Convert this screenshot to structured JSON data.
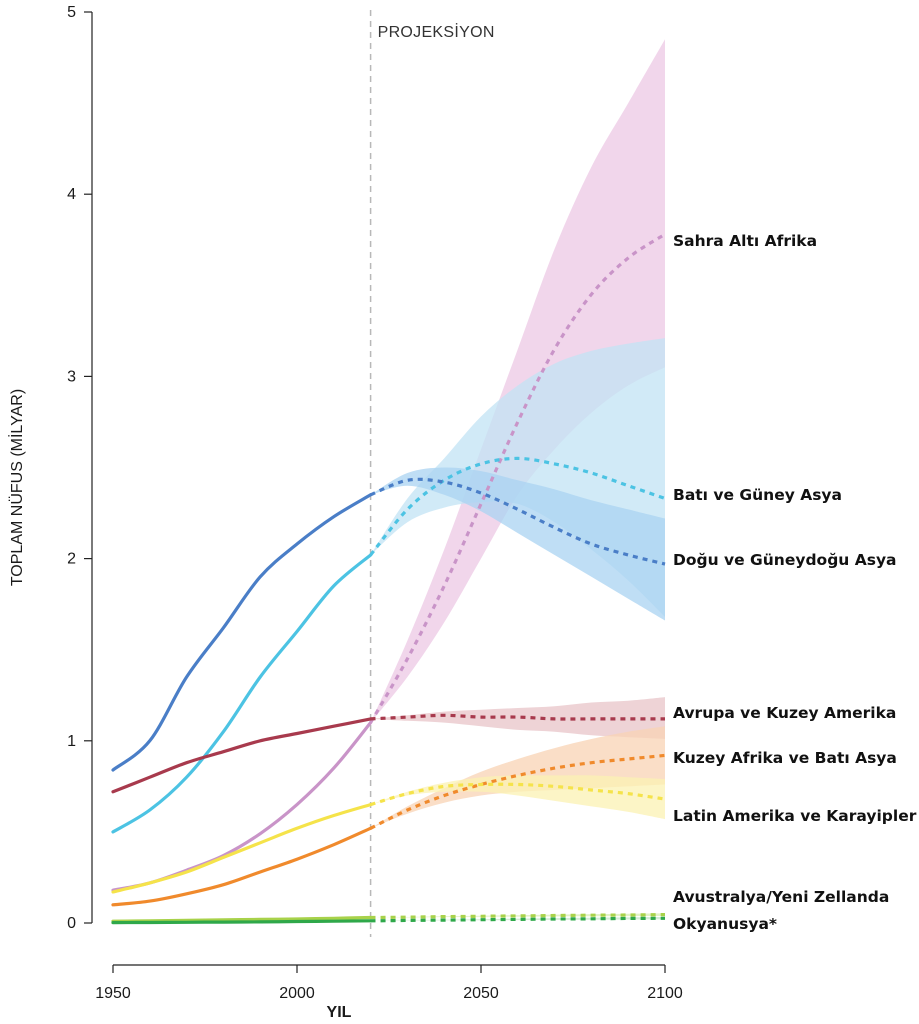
{
  "chart_data": {
    "type": "line",
    "title": "",
    "xlabel": "YIL",
    "ylabel": "TOPLAM NÜFUS (MİLYAR)",
    "xlim": [
      1950,
      2100
    ],
    "ylim": [
      0,
      5
    ],
    "xticks": [
      "1950",
      "2000",
      "2050",
      "2100"
    ],
    "yticks": [
      "0",
      "1",
      "2",
      "3",
      "4",
      "5"
    ],
    "projection_start": 2020,
    "projection_label": "PROJEKSİYON",
    "grid": false,
    "legend": "direct labels at right end of lines",
    "series": [
      {
        "name": "Sahra Altı Afrika",
        "color": "#c994c8",
        "band_color": "#ecc8e4",
        "x": [
          1950,
          1960,
          1970,
          1980,
          1990,
          2000,
          2010,
          2020,
          2030,
          2040,
          2050,
          2060,
          2070,
          2080,
          2090,
          2100
        ],
        "y": [
          0.18,
          0.22,
          0.29,
          0.37,
          0.49,
          0.65,
          0.85,
          1.1,
          1.45,
          1.85,
          2.3,
          2.75,
          3.15,
          3.45,
          3.65,
          3.78
        ],
        "lower": [
          null,
          null,
          null,
          null,
          null,
          null,
          null,
          1.1,
          1.35,
          1.65,
          2.0,
          2.35,
          2.6,
          2.8,
          2.95,
          3.05
        ],
        "upper": [
          null,
          null,
          null,
          null,
          null,
          null,
          null,
          1.1,
          1.55,
          2.05,
          2.6,
          3.15,
          3.7,
          4.15,
          4.5,
          4.85
        ]
      },
      {
        "name": "Batı ve Güney Asya",
        "color": "#4cc3e3",
        "band_color": "#c2e3f4",
        "x": [
          1950,
          1960,
          1970,
          1980,
          1990,
          2000,
          2010,
          2020,
          2030,
          2040,
          2050,
          2060,
          2070,
          2080,
          2090,
          2100
        ],
        "y": [
          0.5,
          0.62,
          0.8,
          1.05,
          1.35,
          1.6,
          1.85,
          2.02,
          2.27,
          2.43,
          2.52,
          2.55,
          2.52,
          2.47,
          2.4,
          2.33
        ],
        "lower": [
          null,
          null,
          null,
          null,
          null,
          null,
          null,
          2.02,
          2.2,
          2.28,
          2.31,
          2.3,
          2.2,
          2.05,
          1.88,
          1.68
        ],
        "upper": [
          null,
          null,
          null,
          null,
          null,
          null,
          null,
          2.02,
          2.33,
          2.55,
          2.78,
          2.95,
          3.07,
          3.14,
          3.18,
          3.21
        ]
      },
      {
        "name": "Doğu ve Güneydoğu Asya",
        "color": "#4a7ec7",
        "band_color": "#a9d3f1",
        "x": [
          1950,
          1960,
          1970,
          1980,
          1990,
          2000,
          2010,
          2020,
          2030,
          2040,
          2050,
          2060,
          2070,
          2080,
          2090,
          2100
        ],
        "y": [
          0.84,
          1.0,
          1.35,
          1.62,
          1.9,
          2.08,
          2.23,
          2.35,
          2.43,
          2.42,
          2.36,
          2.27,
          2.17,
          2.08,
          2.02,
          1.97
        ],
        "lower": [
          null,
          null,
          null,
          null,
          null,
          null,
          null,
          2.35,
          2.4,
          2.35,
          2.26,
          2.14,
          2.02,
          1.9,
          1.78,
          1.66
        ],
        "upper": [
          null,
          null,
          null,
          null,
          null,
          null,
          null,
          2.35,
          2.47,
          2.5,
          2.48,
          2.43,
          2.38,
          2.32,
          2.27,
          2.22
        ]
      },
      {
        "name": "Avrupa ve Kuzey Amerika",
        "color": "#a83a4d",
        "band_color": "#e8c4c8",
        "x": [
          1950,
          1960,
          1970,
          1980,
          1990,
          2000,
          2010,
          2020,
          2030,
          2040,
          2050,
          2060,
          2070,
          2080,
          2090,
          2100
        ],
        "y": [
          0.72,
          0.8,
          0.88,
          0.94,
          1.0,
          1.04,
          1.08,
          1.12,
          1.13,
          1.14,
          1.13,
          1.13,
          1.12,
          1.12,
          1.12,
          1.12
        ],
        "lower": [
          null,
          null,
          null,
          null,
          null,
          null,
          null,
          1.12,
          1.11,
          1.1,
          1.08,
          1.06,
          1.05,
          1.03,
          1.02,
          1.01
        ],
        "upper": [
          null,
          null,
          null,
          null,
          null,
          null,
          null,
          1.12,
          1.14,
          1.16,
          1.17,
          1.18,
          1.19,
          1.21,
          1.22,
          1.24
        ]
      },
      {
        "name": "Kuzey Afrika ve Batı Asya",
        "color": "#f08a2c",
        "band_color": "#f8d3b4",
        "x": [
          1950,
          1960,
          1970,
          1980,
          1990,
          2000,
          2010,
          2020,
          2030,
          2040,
          2050,
          2060,
          2070,
          2080,
          2090,
          2100
        ],
        "y": [
          0.1,
          0.12,
          0.16,
          0.21,
          0.28,
          0.35,
          0.43,
          0.52,
          0.62,
          0.7,
          0.76,
          0.81,
          0.85,
          0.88,
          0.9,
          0.92
        ],
        "lower": [
          null,
          null,
          null,
          null,
          null,
          null,
          null,
          0.52,
          0.6,
          0.66,
          0.7,
          0.72,
          0.73,
          0.74,
          0.75,
          0.76
        ],
        "upper": [
          null,
          null,
          null,
          null,
          null,
          null,
          null,
          0.52,
          0.64,
          0.74,
          0.83,
          0.9,
          0.96,
          1.01,
          1.05,
          1.08
        ]
      },
      {
        "name": "Latin Amerika ve Karayipler",
        "color": "#f5e34a",
        "band_color": "#fbf1b3",
        "x": [
          1950,
          1960,
          1970,
          1980,
          1990,
          2000,
          2010,
          2020,
          2030,
          2040,
          2050,
          2060,
          2070,
          2080,
          2090,
          2100
        ],
        "y": [
          0.17,
          0.22,
          0.28,
          0.36,
          0.44,
          0.52,
          0.59,
          0.65,
          0.71,
          0.75,
          0.76,
          0.76,
          0.75,
          0.73,
          0.71,
          0.68
        ],
        "lower": [
          null,
          null,
          null,
          null,
          null,
          null,
          null,
          0.65,
          0.7,
          0.72,
          0.72,
          0.7,
          0.67,
          0.64,
          0.61,
          0.57
        ],
        "upper": [
          null,
          null,
          null,
          null,
          null,
          null,
          null,
          0.65,
          0.72,
          0.77,
          0.8,
          0.81,
          0.81,
          0.81,
          0.8,
          0.79
        ]
      },
      {
        "name": "Avustralya/Yeni Zellanda",
        "color": "#a8d24a",
        "band_color": "#d9ecb3",
        "x": [
          1950,
          1960,
          1970,
          1980,
          1990,
          2000,
          2010,
          2020,
          2030,
          2040,
          2050,
          2060,
          2070,
          2080,
          2090,
          2100
        ],
        "y": [
          0.01,
          0.012,
          0.015,
          0.017,
          0.02,
          0.022,
          0.026,
          0.03,
          0.032,
          0.035,
          0.037,
          0.039,
          0.041,
          0.043,
          0.044,
          0.046
        ],
        "lower": [
          null,
          null,
          null,
          null,
          null,
          null,
          null,
          0.03,
          0.031,
          0.033,
          0.034,
          0.035,
          0.036,
          0.037,
          0.038,
          0.038
        ],
        "upper": [
          null,
          null,
          null,
          null,
          null,
          null,
          null,
          0.03,
          0.033,
          0.037,
          0.04,
          0.043,
          0.046,
          0.049,
          0.051,
          0.054
        ]
      },
      {
        "name": "Okyanusya*",
        "color": "#2fa84a",
        "band_color": "#c5e6c7",
        "x": [
          1950,
          1960,
          1970,
          1980,
          1990,
          2000,
          2010,
          2020,
          2030,
          2040,
          2050,
          2060,
          2070,
          2080,
          2090,
          2100
        ],
        "y": [
          0.002,
          0.003,
          0.004,
          0.005,
          0.006,
          0.008,
          0.01,
          0.012,
          0.014,
          0.016,
          0.018,
          0.02,
          0.022,
          0.023,
          0.025,
          0.026
        ],
        "lower": [
          null,
          null,
          null,
          null,
          null,
          null,
          null,
          0.012,
          0.013,
          0.014,
          0.015,
          0.016,
          0.017,
          0.018,
          0.019,
          0.02
        ],
        "upper": [
          null,
          null,
          null,
          null,
          null,
          null,
          null,
          0.012,
          0.015,
          0.018,
          0.021,
          0.024,
          0.027,
          0.029,
          0.031,
          0.033
        ]
      }
    ]
  }
}
